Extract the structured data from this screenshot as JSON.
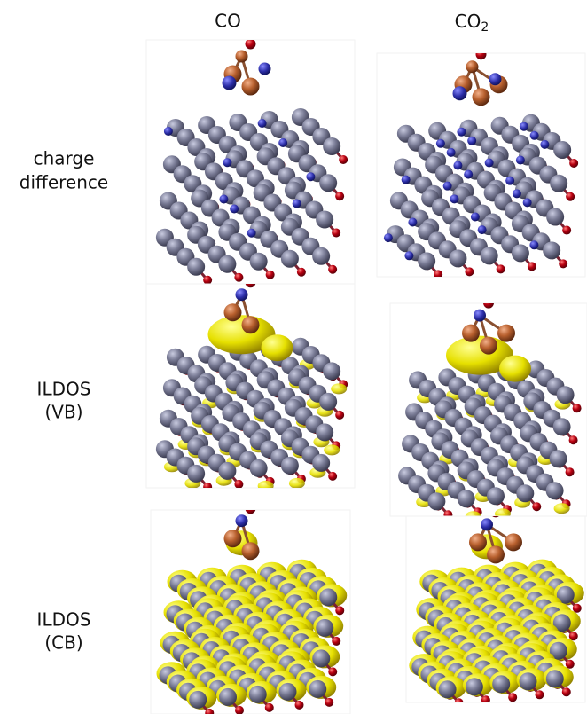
{
  "columns": [
    {
      "label": "CO"
    },
    {
      "label": "CO",
      "subscript": "2"
    }
  ],
  "rows": [
    {
      "lines": [
        "charge",
        "difference"
      ]
    },
    {
      "lines": [
        "ILDOS",
        "(VB)"
      ]
    },
    {
      "lines": [
        "ILDOS",
        "(CB)"
      ]
    }
  ]
}
